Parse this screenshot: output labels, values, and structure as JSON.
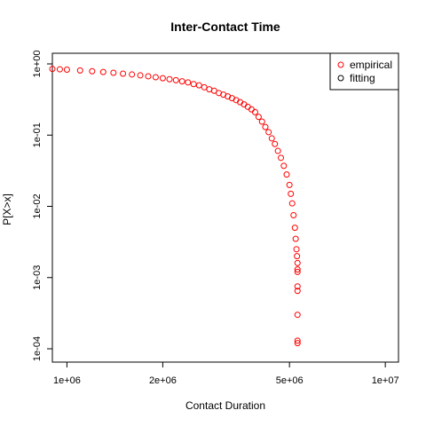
{
  "chart_data": {
    "type": "scatter",
    "title": "Inter-Contact Time",
    "xlabel": "Contact Duration",
    "ylabel": "P[X>x]",
    "x_scale": "log",
    "y_scale": "log",
    "xlim": [
      900000,
      11000000
    ],
    "ylim": [
      0.0001,
      1
    ],
    "x_ticks": [
      {
        "value": 1000000,
        "label": "1e+06"
      },
      {
        "value": 2000000,
        "label": "2e+06"
      },
      {
        "value": 5000000,
        "label": "5e+06"
      },
      {
        "value": 10000000,
        "label": "1e+07"
      }
    ],
    "y_ticks": [
      {
        "value": 1,
        "label": "1e+00"
      },
      {
        "value": 0.1,
        "label": "1e-01"
      },
      {
        "value": 0.01,
        "label": "1e-02"
      },
      {
        "value": 0.001,
        "label": "1e-03"
      },
      {
        "value": 0.0001,
        "label": "1e-04"
      }
    ],
    "grid": false,
    "legend": {
      "placement": "top-right",
      "entries": [
        {
          "label": "empirical",
          "color": "#ff0000",
          "marker": "open-circle"
        },
        {
          "label": "fitting",
          "color": "#000000",
          "marker": "open-circle"
        }
      ]
    },
    "series": [
      {
        "name": "empirical",
        "color": "#ff0000",
        "marker": "open-circle",
        "points": [
          [
            900000,
            0.85
          ],
          [
            950000,
            0.84
          ],
          [
            1000000,
            0.83
          ],
          [
            1100000,
            0.81
          ],
          [
            1200000,
            0.79
          ],
          [
            1300000,
            0.77
          ],
          [
            1400000,
            0.75
          ],
          [
            1500000,
            0.73
          ],
          [
            1600000,
            0.71
          ],
          [
            1700000,
            0.69
          ],
          [
            1800000,
            0.67
          ],
          [
            1900000,
            0.65
          ],
          [
            2000000,
            0.63
          ],
          [
            2100000,
            0.61
          ],
          [
            2200000,
            0.59
          ],
          [
            2300000,
            0.57
          ],
          [
            2400000,
            0.55
          ],
          [
            2500000,
            0.52
          ],
          [
            2600000,
            0.5
          ],
          [
            2700000,
            0.47
          ],
          [
            2800000,
            0.44
          ],
          [
            2900000,
            0.42
          ],
          [
            3000000,
            0.39
          ],
          [
            3100000,
            0.37
          ],
          [
            3200000,
            0.35
          ],
          [
            3300000,
            0.33
          ],
          [
            3400000,
            0.31
          ],
          [
            3500000,
            0.29
          ],
          [
            3600000,
            0.27
          ],
          [
            3700000,
            0.25
          ],
          [
            3800000,
            0.23
          ],
          [
            3900000,
            0.21
          ],
          [
            4000000,
            0.18
          ],
          [
            4100000,
            0.155
          ],
          [
            4200000,
            0.13
          ],
          [
            4300000,
            0.11
          ],
          [
            4400000,
            0.09
          ],
          [
            4500000,
            0.075
          ],
          [
            4600000,
            0.06
          ],
          [
            4700000,
            0.048
          ],
          [
            4800000,
            0.037
          ],
          [
            4900000,
            0.028
          ],
          [
            5000000,
            0.02
          ],
          [
            5050000,
            0.015
          ],
          [
            5100000,
            0.011
          ],
          [
            5150000,
            0.0075
          ],
          [
            5200000,
            0.005
          ],
          [
            5230000,
            0.0035
          ],
          [
            5260000,
            0.0025
          ],
          [
            5280000,
            0.002
          ],
          [
            5300000,
            0.0016
          ],
          [
            5300000,
            0.0013
          ],
          [
            5300000,
            0.0012
          ],
          [
            5300000,
            0.00075
          ],
          [
            5300000,
            0.00065
          ],
          [
            5300000,
            0.0003
          ],
          [
            5300000,
            0.00013
          ],
          [
            5300000,
            0.00012
          ]
        ]
      }
    ]
  }
}
